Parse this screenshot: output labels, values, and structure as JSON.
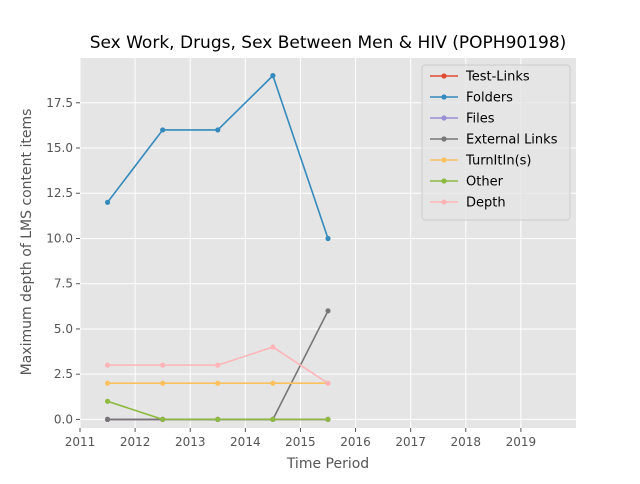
{
  "chart_data": {
    "type": "line",
    "title": "Sex Work, Drugs, Sex Between Men & HIV (POPH90198)",
    "xlabel": "Time Period",
    "ylabel": "Maximum depth of LMS content items",
    "xlim": [
      2011,
      2020
    ],
    "ylim": [
      -0.475,
      19.975
    ],
    "grid": true,
    "legend_position": "top-right",
    "x_ticks": [
      2011,
      2012,
      2013,
      2014,
      2015,
      2016,
      2017,
      2018,
      2019
    ],
    "x_tick_labels": [
      "2011",
      "2012",
      "2013",
      "2014",
      "2015",
      "2016",
      "2017",
      "2018",
      "2019"
    ],
    "y_ticks": [
      0,
      2.5,
      5,
      7.5,
      10,
      12.5,
      15,
      17.5
    ],
    "y_tick_labels": [
      "0.0",
      "2.5",
      "5.0",
      "7.5",
      "10.0",
      "12.5",
      "15.0",
      "17.5"
    ],
    "x": [
      2011.5,
      2012.5,
      2013.5,
      2014.5,
      2015.5
    ],
    "series": [
      {
        "name": "Test-Links",
        "color": "#E24A33",
        "values": [
          0,
          0,
          0,
          0,
          0
        ]
      },
      {
        "name": "Folders",
        "color": "#348ABD",
        "values": [
          12,
          16,
          16,
          19,
          10
        ]
      },
      {
        "name": "Files",
        "color": "#988ED5",
        "values": [
          0,
          0,
          0,
          0,
          0
        ]
      },
      {
        "name": "External Links",
        "color": "#777777",
        "values": [
          0,
          0,
          0,
          0,
          6
        ]
      },
      {
        "name": "TurnItIn(s)",
        "color": "#FBC15E",
        "values": [
          2,
          2,
          2,
          2,
          2
        ]
      },
      {
        "name": "Other",
        "color": "#8EBA42",
        "values": [
          1,
          0,
          0,
          0,
          0
        ]
      },
      {
        "name": "Depth",
        "color": "#FFB5B8",
        "values": [
          3,
          3,
          3,
          4,
          2
        ]
      }
    ]
  }
}
